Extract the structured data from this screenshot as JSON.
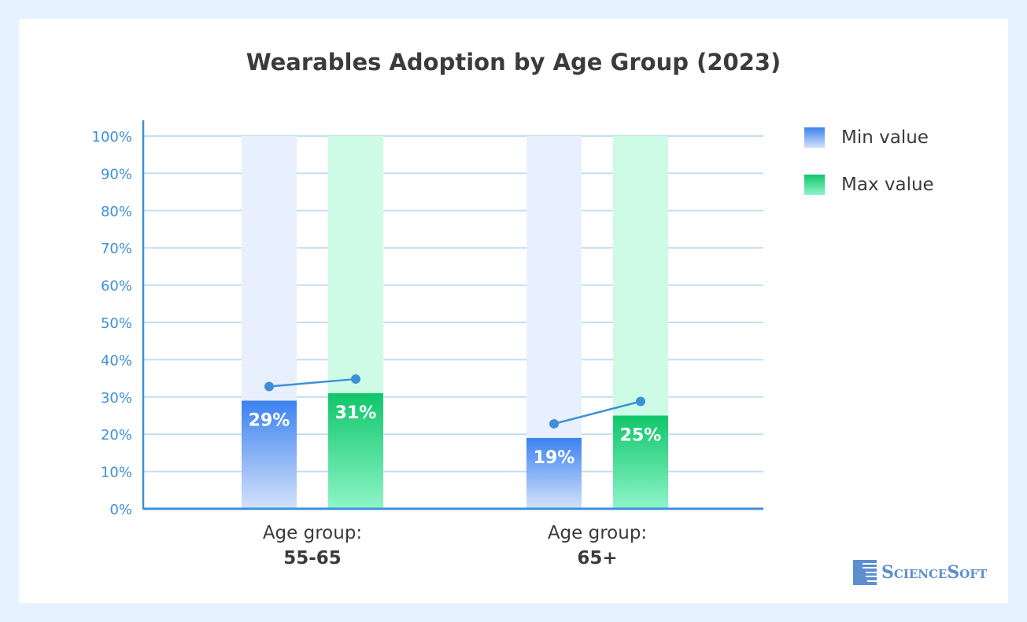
{
  "chart_data": {
    "type": "bar",
    "title": "Wearables Adoption by Age Group (2023)",
    "categories": [
      {
        "line1": "Age group:",
        "line2": "55-65"
      },
      {
        "line1": "Age group:",
        "line2": "65+"
      }
    ],
    "series": [
      {
        "name": "Min value",
        "values": [
          29,
          19
        ],
        "labels": [
          "29%",
          "19%"
        ],
        "color": "#3b82f0"
      },
      {
        "name": "Max value",
        "values": [
          31,
          25
        ],
        "labels": [
          "31%",
          "25%"
        ],
        "color": "#0fc66a"
      }
    ],
    "ylim": [
      0,
      100
    ],
    "yticks": [
      "0%",
      "10%",
      "20%",
      "30%",
      "40%",
      "50%",
      "60%",
      "70%",
      "80%",
      "90%",
      "100%"
    ],
    "grid": true,
    "legend": "right"
  },
  "brand": {
    "logo_text": "ScienceSoft",
    "axis_color": "#3d90d8"
  }
}
